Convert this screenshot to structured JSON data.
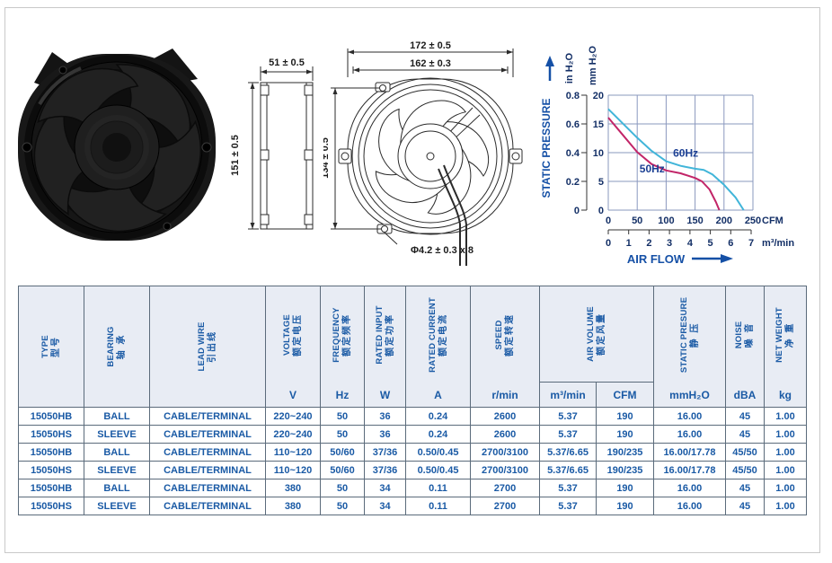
{
  "page": {
    "background": "#ffffff",
    "frame_border": "#c9c9c9"
  },
  "photo": {
    "description": "black axial AC fan, round frame, 5 blades"
  },
  "drawings": {
    "side_view": {
      "width": "51 ± 0.5",
      "height": "151 ± 0.5"
    },
    "front_view": {
      "outer_width": "172 ± 0.5",
      "mount_width": "162 ± 0.3",
      "mount_height": "134 ± 0.5",
      "hole_spec": "Φ4.2 ± 0.3 x 8"
    }
  },
  "chart_data": {
    "type": "line",
    "title": "",
    "y_axis": {
      "label": "STATIC PRESSURE",
      "unit_outer": "in H₂O",
      "unit_inner": "mm H₂O",
      "ticks_in": [
        "0.8",
        "0.6",
        "0.4",
        "0.2",
        "0"
      ],
      "ticks_mm": [
        "20",
        "15",
        "10",
        "5",
        "0"
      ],
      "range_mm": [
        0,
        20
      ],
      "grid": true
    },
    "x_axis": {
      "label": "AIR FLOW",
      "unit_primary": "CFM",
      "unit_secondary": "m³/min",
      "ticks_cfm": [
        "0",
        "50",
        "100",
        "150",
        "200",
        "250"
      ],
      "ticks_m3min": [
        "0",
        "1",
        "2",
        "3",
        "4",
        "5",
        "6",
        "7"
      ],
      "range_cfm": [
        0,
        250
      ]
    },
    "series": [
      {
        "name": "60Hz",
        "color": "#41b5d9",
        "points": [
          [
            0,
            17.6
          ],
          [
            25,
            15.1
          ],
          [
            50,
            12.6
          ],
          [
            75,
            10.3
          ],
          [
            100,
            8.5
          ],
          [
            125,
            7.7
          ],
          [
            150,
            7.2
          ],
          [
            165,
            7.0
          ],
          [
            180,
            6.2
          ],
          [
            200,
            4.4
          ],
          [
            220,
            2.2
          ],
          [
            234,
            0
          ]
        ]
      },
      {
        "name": "50Hz",
        "color": "#c22568",
        "points": [
          [
            0,
            16.1
          ],
          [
            25,
            13.1
          ],
          [
            50,
            10.1
          ],
          [
            75,
            8.0
          ],
          [
            100,
            6.9
          ],
          [
            125,
            6.4
          ],
          [
            150,
            5.6
          ],
          [
            162,
            5.0
          ],
          [
            175,
            3.6
          ],
          [
            186,
            1.4
          ],
          [
            192,
            0
          ]
        ]
      }
    ],
    "series_labels": [
      {
        "text": "60Hz",
        "cfm": 112,
        "mm": 9.3
      },
      {
        "text": "50Hz",
        "cfm": 54,
        "mm": 6.6
      }
    ]
  },
  "table": {
    "columns": [
      {
        "en": "TYPE",
        "zh": "型号",
        "unit": ""
      },
      {
        "en": "BEARING",
        "zh": "轴 承",
        "unit": ""
      },
      {
        "en": "LEAD WIRE",
        "zh": "引出线",
        "unit": ""
      },
      {
        "en": "VOLTAGE",
        "zh": "额定电压",
        "unit": "V"
      },
      {
        "en": "FREQUENCY",
        "zh": "额定频率",
        "unit": "Hz"
      },
      {
        "en": "RATED INPUT",
        "zh": "额定功率",
        "unit": "W"
      },
      {
        "en": "RATED CURRENT",
        "zh": "额定电流",
        "unit": "A"
      },
      {
        "en": "SPEED",
        "zh": "额定转速",
        "unit": "r/min"
      },
      {
        "en": "AIR VOLUME",
        "zh": "额定风量",
        "units": [
          "m³/min",
          "CFM"
        ]
      },
      {
        "en": "STATIC PRESURE",
        "zh": "静 压",
        "unit": "mmH₂O"
      },
      {
        "en": "NOISE",
        "zh": "噪 音",
        "unit": "dBA"
      },
      {
        "en": "NET WEIGHT",
        "zh": "净 重",
        "unit": "kg"
      }
    ],
    "rows": [
      [
        "15050HB",
        "BALL",
        "CABLE/TERMINAL",
        "220~240",
        "50",
        "36",
        "0.24",
        "2600",
        "5.37",
        "190",
        "16.00",
        "45",
        "1.00"
      ],
      [
        "15050HS",
        "SLEEVE",
        "CABLE/TERMINAL",
        "220~240",
        "50",
        "36",
        "0.24",
        "2600",
        "5.37",
        "190",
        "16.00",
        "45",
        "1.00"
      ],
      [
        "15050HB",
        "BALL",
        "CABLE/TERMINAL",
        "110~120",
        "50/60",
        "37/36",
        "0.50/0.45",
        "2700/3100",
        "5.37/6.65",
        "190/235",
        "16.00/17.78",
        "45/50",
        "1.00"
      ],
      [
        "15050HS",
        "SLEEVE",
        "CABLE/TERMINAL",
        "110~120",
        "50/60",
        "37/36",
        "0.50/0.45",
        "2700/3100",
        "5.37/6.65",
        "190/235",
        "16.00/17.78",
        "45/50",
        "1.00"
      ],
      [
        "15050HB",
        "BALL",
        "CABLE/TERMINAL",
        "380",
        "50",
        "34",
        "0.11",
        "2700",
        "5.37",
        "190",
        "16.00",
        "45",
        "1.00"
      ],
      [
        "15050HS",
        "SLEEVE",
        "CABLE/TERMINAL",
        "380",
        "50",
        "34",
        "0.11",
        "2700",
        "5.37",
        "190",
        "16.00",
        "45",
        "1.00"
      ]
    ]
  }
}
